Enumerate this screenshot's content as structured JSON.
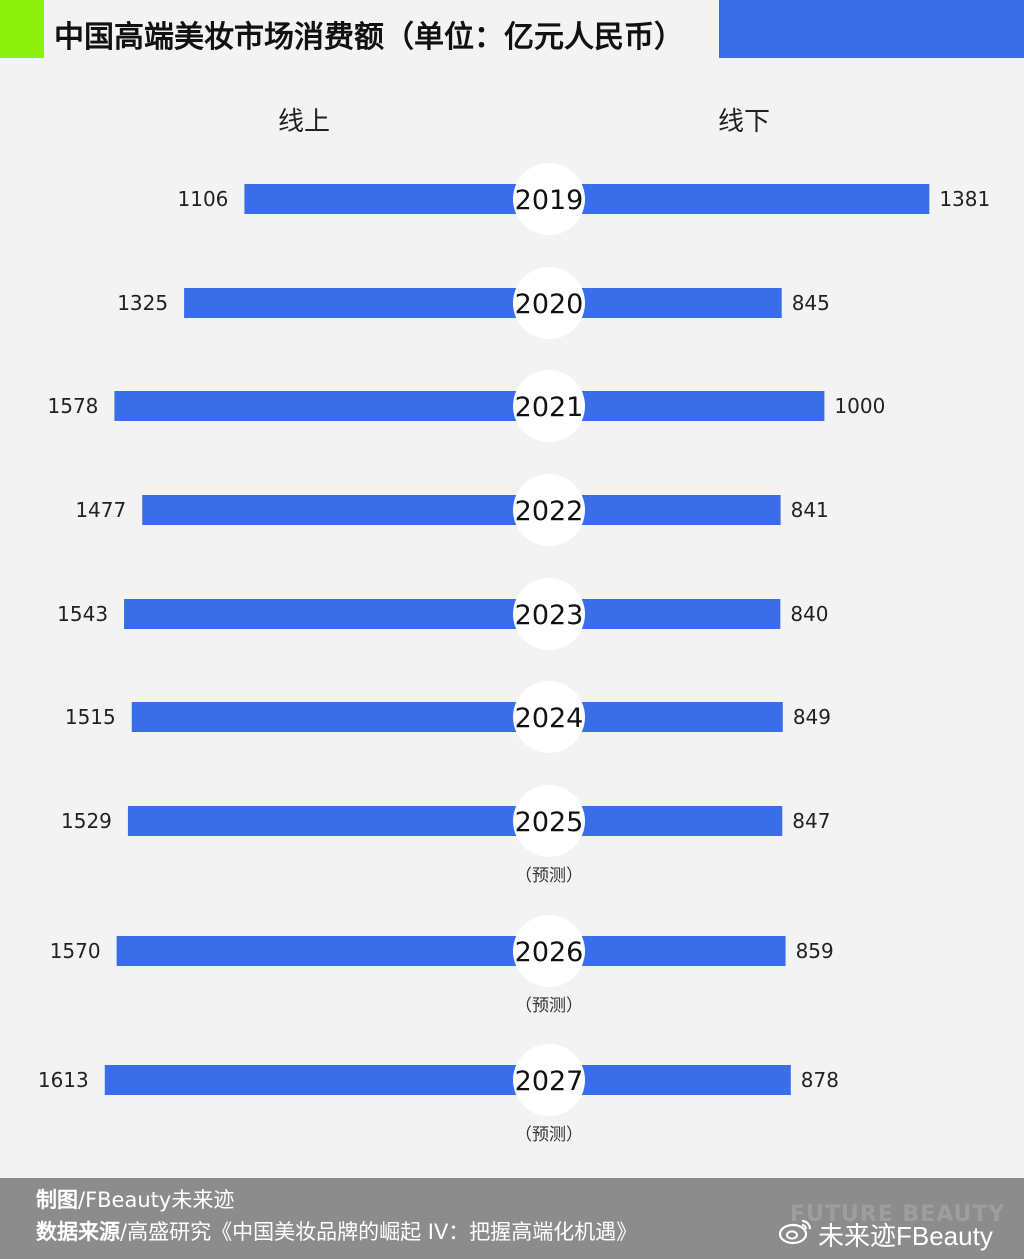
{
  "header": {
    "title": "中国高端美妆市场消费额（单位：亿元人民币）",
    "accent_color": "#8ef10c",
    "bar_color": "#3a6de8"
  },
  "chart_data": {
    "type": "bar",
    "orientation": "horizontal-diverging",
    "title": "中国高端美妆市场消费额（单位：亿元人民币）",
    "left_label": "线上",
    "right_label": "线下",
    "categories": [
      "2019",
      "2020",
      "2021",
      "2022",
      "2023",
      "2024",
      "2025",
      "2026",
      "2027"
    ],
    "category_notes": [
      "",
      "",
      "",
      "",
      "",
      "",
      "（预测）",
      "（预测）",
      "（预测）"
    ],
    "series": [
      {
        "name": "线上",
        "values": [
          1106,
          1325,
          1578,
          1477,
          1543,
          1515,
          1529,
          1570,
          1613
        ]
      },
      {
        "name": "线下",
        "values": [
          1381,
          845,
          1000,
          841,
          840,
          849,
          847,
          859,
          878
        ]
      }
    ],
    "color": "#3a6de8"
  },
  "footer": {
    "credit_label": "制图",
    "credit_value": "/FBeauty未来迹",
    "source_label": "数据来源",
    "source_value": "/高盛研究《中国美妆品牌的崛起 IV：把握高端化机遇》",
    "watermark": "FUTURE BEAUTY",
    "weibo_handle": "未来迹FBeauty",
    "weibo_icon": "weibo-icon"
  }
}
